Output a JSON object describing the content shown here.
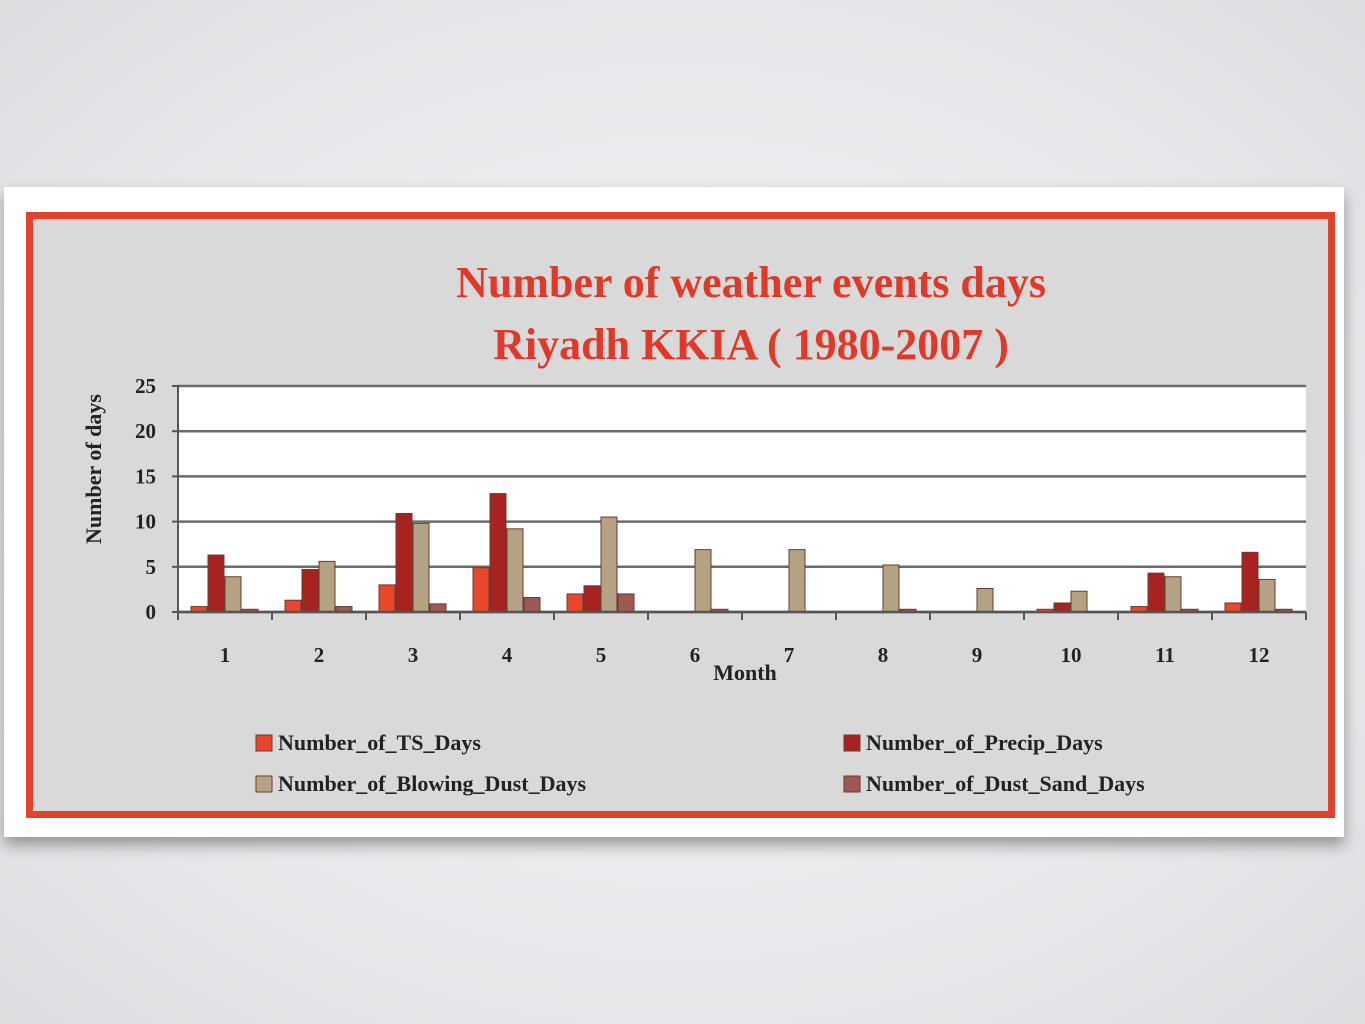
{
  "chart_data": {
    "type": "bar",
    "title": [
      "Number of weather events days",
      "Riyadh KKIA ( 1980-2007 )"
    ],
    "xlabel": "Month",
    "ylabel": "Number of days",
    "categories": [
      "1",
      "2",
      "3",
      "4",
      "5",
      "6",
      "7",
      "8",
      "9",
      "10",
      "11",
      "12"
    ],
    "ylim": [
      0,
      25
    ],
    "yticks": [
      "0",
      "5",
      "10",
      "15",
      "20",
      "25"
    ],
    "grid": true,
    "legend_position": "bottom",
    "series": [
      {
        "name": "Number_of_TS_Days",
        "color": "#e8472c",
        "values": [
          0.6,
          1.3,
          3.0,
          4.9,
          2.0,
          0,
          0,
          0,
          0,
          0.3,
          0.6,
          1.0
        ]
      },
      {
        "name": "Number_of_Precip_Days",
        "color": "#a8231f",
        "values": [
          6.3,
          4.7,
          10.9,
          13.1,
          2.9,
          0,
          0,
          0,
          0,
          1.0,
          4.3,
          6.6
        ]
      },
      {
        "name": "Number_of_Blowing_Dust_Days",
        "color": "#b5a282",
        "values": [
          3.9,
          5.6,
          9.8,
          9.2,
          10.5,
          6.9,
          6.9,
          5.2,
          2.6,
          2.3,
          3.9,
          3.6
        ]
      },
      {
        "name": "Number_of_Dust_Sand_Days",
        "color": "#9c5a52",
        "values": [
          0.3,
          0.6,
          0.9,
          1.6,
          2.0,
          0.3,
          0,
          0.3,
          0,
          0,
          0.3,
          0.3
        ]
      }
    ]
  }
}
